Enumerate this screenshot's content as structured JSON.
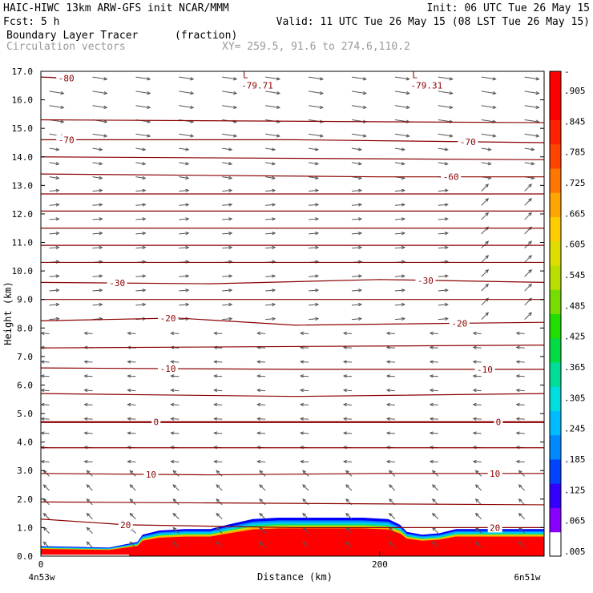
{
  "header": {
    "line1_left": "HAIC-HIWC 13km ARW-GFS init   NCAR/MMM",
    "line1_right": "Init: 06 UTC Tue 26 May 15",
    "line2_left": "Fcst:    5 h",
    "line2_right": "Valid: 11 UTC Tue 26 May 15 (08 LST Tue 26 May 15)",
    "line3_left": "Boundary Layer Tracer",
    "line3_unit": "(fraction)",
    "line4_left": "Circulation vectors",
    "line4_xy": "XY= 259.5, 91.6 to 274.6,110.2"
  },
  "colors": {
    "contour": "#8b0000",
    "vector": "#555555",
    "colorbar": [
      "#ffffff",
      "#8800ff",
      "#3300ff",
      "#0044ff",
      "#0088ff",
      "#00bbff",
      "#00dddd",
      "#00dd99",
      "#00dd44",
      "#22dd00",
      "#77dd00",
      "#bbdd00",
      "#dddd00",
      "#ffcc00",
      "#ffa500",
      "#ff7700",
      "#ff4400",
      "#ff2200",
      "#ff0000",
      "#ff0000"
    ]
  },
  "chart_data": {
    "type": "contour",
    "xlabel": "Distance (km)",
    "ylabel": "Height (km)",
    "xlim": [
      0,
      297
    ],
    "ylim": [
      0,
      17
    ],
    "x_ticks": [
      {
        "value": 0,
        "label": "0"
      },
      {
        "value": 200,
        "label": "200"
      }
    ],
    "x_end_labels": {
      "left": "4n53w",
      "right": "6n51w"
    },
    "y_ticks": [
      "0.0",
      "1.0",
      "2.0",
      "3.0",
      "4.0",
      "5.0",
      "6.0",
      "7.0",
      "8.0",
      "9.0",
      "10.0",
      "11.0",
      "12.0",
      "13.0",
      "14.0",
      "15.0",
      "16.0",
      "17.0"
    ],
    "colorbar_labels": [
      ".005",
      ".065",
      ".125",
      ".185",
      ".245",
      ".305",
      ".365",
      ".425",
      ".485",
      ".545",
      ".605",
      ".665",
      ".725",
      ".785",
      ".845",
      ".905"
    ],
    "colorbar_top_label": "-",
    "temperature_contours": [
      {
        "temp": 20,
        "label": "20",
        "points": [
          [
            0,
            1.3
          ],
          [
            50,
            1.1
          ],
          [
            150,
            1.0
          ],
          [
            250,
            1.0
          ],
          [
            297,
            1.0
          ]
        ],
        "label_x": 50,
        "label2_x": 268
      },
      {
        "temp": 15,
        "label": "",
        "points": [
          [
            0,
            1.9
          ],
          [
            297,
            1.8
          ]
        ]
      },
      {
        "temp": 10,
        "label": "10",
        "points": [
          [
            0,
            2.9
          ],
          [
            100,
            2.85
          ],
          [
            200,
            2.9
          ],
          [
            297,
            2.9
          ]
        ],
        "label_x": 65,
        "label2_x": 268
      },
      {
        "temp": 5,
        "label": "",
        "points": [
          [
            0,
            3.8
          ],
          [
            297,
            3.8
          ]
        ]
      },
      {
        "temp": 0,
        "label": "0",
        "points": [
          [
            0,
            4.7
          ],
          [
            100,
            4.7
          ],
          [
            200,
            4.7
          ],
          [
            297,
            4.7
          ]
        ],
        "label_x": 68,
        "label2_x": 270
      },
      {
        "temp": -5,
        "label": "",
        "points": [
          [
            0,
            5.7
          ],
          [
            150,
            5.6
          ],
          [
            297,
            5.7
          ]
        ]
      },
      {
        "temp": -10,
        "label": "-10",
        "points": [
          [
            0,
            6.6
          ],
          [
            150,
            6.55
          ],
          [
            297,
            6.55
          ]
        ],
        "label_x": 75,
        "label2_x": 262
      },
      {
        "temp": -15,
        "label": "",
        "points": [
          [
            0,
            7.3
          ],
          [
            297,
            7.4
          ]
        ]
      },
      {
        "temp": -20,
        "label": "-20",
        "points": [
          [
            0,
            8.25
          ],
          [
            80,
            8.35
          ],
          [
            150,
            8.1
          ],
          [
            297,
            8.2
          ]
        ],
        "label_x": 75,
        "label2_x": 247
      },
      {
        "temp": -25,
        "label": "",
        "points": [
          [
            0,
            9.0
          ],
          [
            297,
            9.0
          ]
        ]
      },
      {
        "temp": -30,
        "label": "-30",
        "points": [
          [
            0,
            9.6
          ],
          [
            100,
            9.55
          ],
          [
            200,
            9.7
          ],
          [
            297,
            9.6
          ]
        ],
        "label_x": 45,
        "label2_x": 227
      },
      {
        "temp": -35,
        "label": "",
        "points": [
          [
            0,
            10.3
          ],
          [
            297,
            10.3
          ]
        ]
      },
      {
        "temp": -40,
        "label": "",
        "points": [
          [
            0,
            10.9
          ],
          [
            297,
            10.9
          ]
        ]
      },
      {
        "temp": -45,
        "label": "",
        "points": [
          [
            0,
            11.5
          ],
          [
            297,
            11.5
          ]
        ]
      },
      {
        "temp": -50,
        "label": "",
        "points": [
          [
            0,
            12.1
          ],
          [
            297,
            12.1
          ]
        ]
      },
      {
        "temp": -55,
        "label": "",
        "points": [
          [
            0,
            12.7
          ],
          [
            297,
            12.7
          ]
        ]
      },
      {
        "temp": -60,
        "label": "-60",
        "points": [
          [
            0,
            13.4
          ],
          [
            200,
            13.3
          ],
          [
            297,
            13.3
          ]
        ],
        "label_x": 242
      },
      {
        "temp": -65,
        "label": "",
        "points": [
          [
            0,
            14.0
          ],
          [
            297,
            13.9
          ]
        ]
      },
      {
        "temp": -70,
        "label": "-70",
        "points": [
          [
            0,
            14.6
          ],
          [
            150,
            14.6
          ],
          [
            297,
            14.5
          ]
        ],
        "label_x": 15,
        "label2_x": 252
      },
      {
        "temp": -75,
        "label": "",
        "points": [
          [
            0,
            15.3
          ],
          [
            297,
            15.2
          ]
        ]
      },
      {
        "temp": -80,
        "label": "-80",
        "points": [
          [
            0,
            16.8
          ],
          [
            20,
            16.75
          ]
        ],
        "label_x": 15
      }
    ],
    "minima": [
      {
        "x": 122,
        "y": 16.7,
        "label": "-79.71"
      },
      {
        "x": 222,
        "y": 16.7,
        "label": "-79.31"
      }
    ],
    "tracer_region": {
      "description": "boundary layer tracer fraction near surface",
      "top_outline": [
        [
          0,
          0.35
        ],
        [
          40,
          0.3
        ],
        [
          57,
          0.5
        ],
        [
          60,
          0.75
        ],
        [
          70,
          0.9
        ],
        [
          85,
          0.95
        ],
        [
          100,
          0.95
        ],
        [
          110,
          1.1
        ],
        [
          125,
          1.3
        ],
        [
          140,
          1.35
        ],
        [
          190,
          1.35
        ],
        [
          205,
          1.3
        ],
        [
          212,
          1.1
        ],
        [
          216,
          0.85
        ],
        [
          225,
          0.75
        ],
        [
          235,
          0.8
        ],
        [
          245,
          0.95
        ],
        [
          297,
          0.95
        ]
      ]
    }
  }
}
